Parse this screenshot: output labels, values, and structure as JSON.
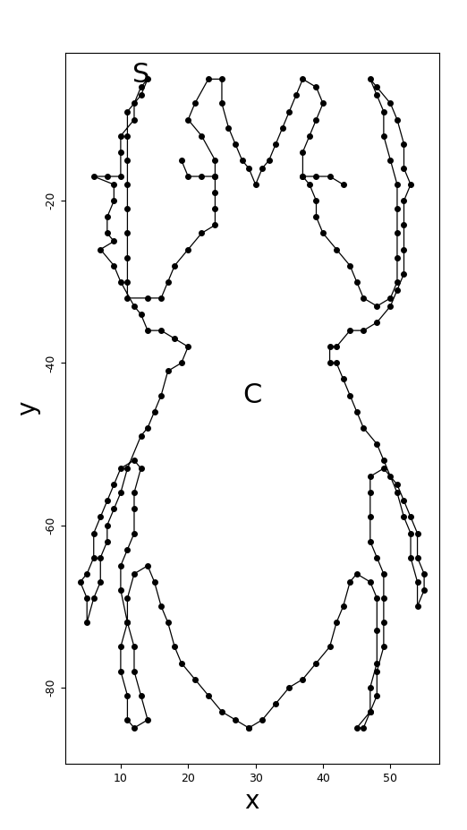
{
  "chart_data": {
    "type": "line",
    "marker": "o",
    "line_style": "solid",
    "color": "#000000",
    "x_label": "x",
    "y_label": "y",
    "x": [
      29,
      27,
      25,
      23,
      21,
      19,
      18,
      17,
      16,
      15,
      14,
      12,
      11,
      11,
      10,
      10,
      11,
      11,
      12,
      14,
      13,
      12,
      12,
      11,
      10,
      10,
      11,
      12,
      12,
      12,
      13,
      12,
      10,
      9,
      8,
      7,
      6,
      6,
      5,
      4,
      5,
      5,
      6,
      7,
      7,
      8,
      8,
      9,
      10,
      11,
      13,
      14,
      15,
      16,
      17,
      19,
      20,
      18,
      16,
      14,
      13,
      12,
      10,
      9,
      7,
      9,
      8,
      8,
      9,
      9,
      6,
      8,
      10,
      10,
      10,
      12,
      12,
      13,
      14,
      13,
      11,
      11,
      11,
      11,
      11,
      11,
      11,
      11,
      11,
      14,
      16,
      17,
      18,
      20,
      22,
      24,
      24,
      24,
      24,
      22,
      20,
      19,
      null,
      24,
      24,
      22,
      20,
      21,
      23,
      25,
      25,
      26,
      27,
      28,
      29,
      30,
      31,
      32,
      33,
      34,
      35,
      36,
      37,
      39,
      40,
      39,
      38,
      37,
      37,
      39,
      41,
      43,
      null,
      37,
      38,
      39,
      39,
      40,
      42,
      44,
      45,
      46,
      48,
      50,
      51,
      51,
      51,
      51,
      51,
      50,
      49,
      49,
      48,
      47,
      48,
      50,
      51,
      52,
      52,
      53,
      52,
      52,
      52,
      52,
      51,
      50,
      48,
      46,
      44,
      42,
      41,
      41,
      42,
      43,
      44,
      45,
      46,
      48,
      49,
      50,
      51,
      52,
      53,
      53,
      54,
      54,
      55,
      55,
      54,
      54,
      53,
      52,
      51,
      49,
      47,
      47,
      47,
      47,
      48,
      49,
      49,
      49,
      49,
      48,
      48,
      47,
      46,
      45,
      47,
      47,
      48,
      48,
      48,
      47,
      45,
      44,
      43,
      42,
      41,
      39,
      37,
      35,
      33,
      31,
      29
    ],
    "y": [
      -85,
      -84,
      -83,
      -81,
      -79,
      -77,
      -75,
      -72,
      -70,
      -67,
      -65,
      -66,
      -69,
      -72,
      -75,
      -78,
      -81,
      -84,
      -85,
      -84,
      -81,
      -78,
      -75,
      -72,
      -68,
      -65,
      -63,
      -61,
      -58,
      -56,
      -53,
      -52,
      -53,
      -55,
      -57,
      -59,
      -61,
      -64,
      -66,
      -67,
      -69,
      -72,
      -69,
      -67,
      -64,
      -62,
      -60,
      -58,
      -56,
      -53,
      -49,
      -48,
      -46,
      -44,
      -41,
      -40,
      -38,
      -37,
      -36,
      -36,
      -34,
      -33,
      -30,
      -28,
      -26,
      -25,
      -24,
      -22,
      -20,
      -18,
      -17,
      -17,
      -17,
      -14,
      -12,
      -10,
      -8,
      -6,
      -5,
      -7,
      -9,
      -12,
      -15,
      -18,
      -21,
      -24,
      -27,
      -30,
      -32,
      -32,
      -32,
      -30,
      -28,
      -26,
      -24,
      -23,
      -21,
      -19,
      -17,
      -17,
      -17,
      -15,
      null,
      -17,
      -15,
      -12,
      -10,
      -8,
      -5,
      -5,
      -8,
      -11,
      -13,
      -15,
      -16,
      -18,
      -16,
      -15,
      -13,
      -11,
      -9,
      -7,
      -5,
      -6,
      -8,
      -10,
      -12,
      -14,
      -17,
      -17,
      -17,
      -18,
      null,
      -17,
      -18,
      -20,
      -22,
      -24,
      -26,
      -28,
      -30,
      -32,
      -33,
      -32,
      -30,
      -27,
      -24,
      -21,
      -18,
      -15,
      -12,
      -9,
      -7,
      -5,
      -6,
      -8,
      -10,
      -13,
      -16,
      -18,
      -20,
      -23,
      -26,
      -29,
      -31,
      -33,
      -35,
      -36,
      -36,
      -38,
      -38,
      -40,
      -40,
      -42,
      -44,
      -46,
      -48,
      -50,
      -52,
      -54,
      -56,
      -59,
      -61,
      -64,
      -67,
      -70,
      -68,
      -66,
      -64,
      -61,
      -59,
      -57,
      -55,
      -53,
      -54,
      -56,
      -59,
      -62,
      -64,
      -66,
      -69,
      -72,
      -75,
      -78,
      -81,
      -83,
      -85,
      -85,
      -83,
      -80,
      -77,
      -73,
      -69,
      -67,
      -66,
      -67,
      -70,
      -72,
      -75,
      -77,
      -79,
      -80,
      -82,
      -84,
      -85
    ],
    "xlim": [
      1.8,
      57.2
    ],
    "xticks": [
      10,
      20,
      30,
      40,
      50
    ],
    "ylim": [
      -89.4,
      -1.8
    ],
    "yticks": [
      -20,
      -40,
      -60,
      -80
    ],
    "annotations": [
      {
        "text": "S",
        "x": 13,
        "y": -4.5
      },
      {
        "text": "C",
        "x": 29.5,
        "y": -44
      }
    ]
  }
}
